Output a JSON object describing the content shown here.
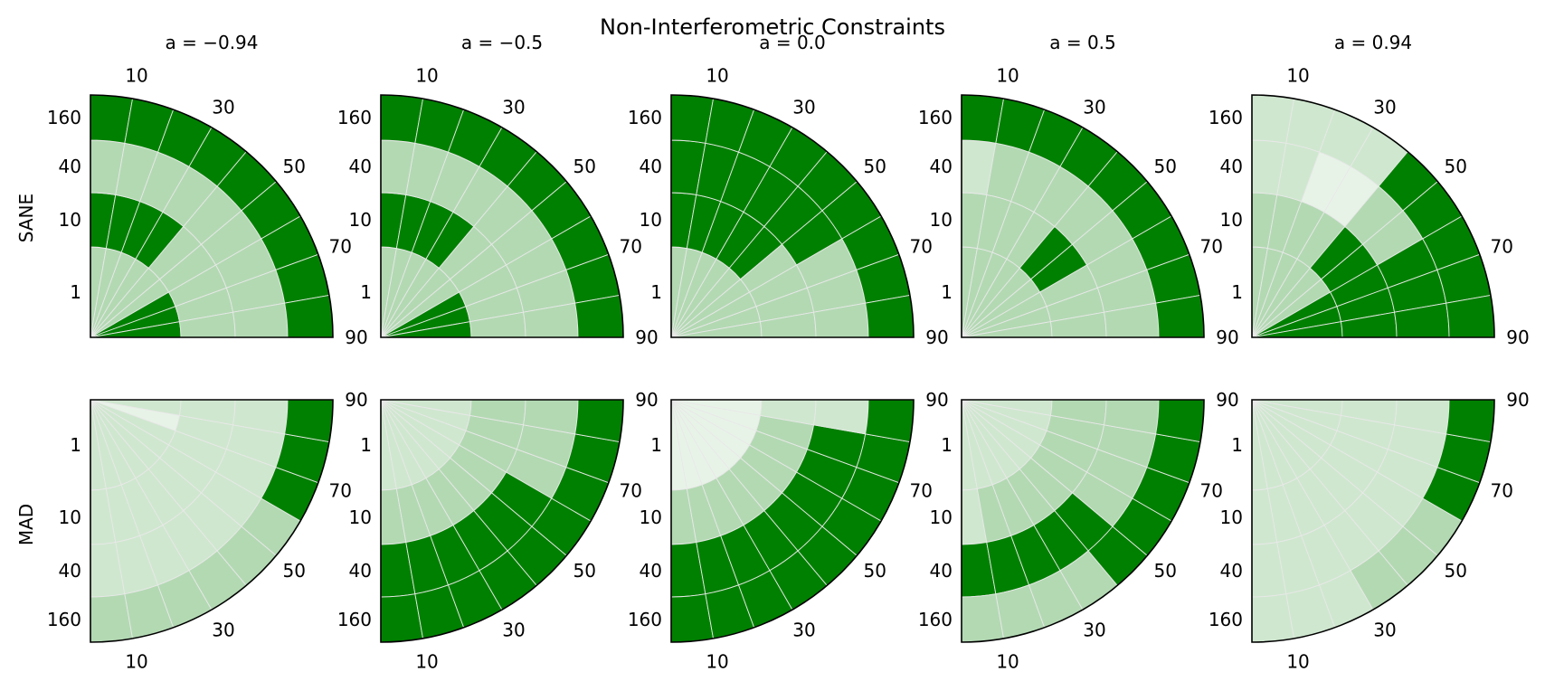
{
  "chart_data": {
    "type": "heatmap",
    "title": "Non-Interferometric Constraints",
    "column_titles": [
      "a = −0.94",
      "a = −0.5",
      "a = 0.0",
      "a = 0.5",
      "a = 0.94"
    ],
    "row_labels": [
      "SANE",
      "MAD"
    ],
    "radial_tick_labels": [
      "1",
      "10",
      "40",
      "160"
    ],
    "angular_tick_labels": [
      "10",
      "30",
      "50",
      "70",
      "90"
    ],
    "palette": [
      "#e8f3e8",
      "#cfe7cf",
      "#b3d9b3",
      "#008000"
    ],
    "panels": [
      {
        "row": "SANE",
        "spin": "a = −0.94",
        "grid": [
          [
            2,
            2,
            2,
            2,
            2,
            2,
            3,
            3,
            3
          ],
          [
            3,
            3,
            3,
            3,
            2,
            2,
            2,
            2,
            2
          ],
          [
            2,
            2,
            2,
            2,
            2,
            2,
            2,
            2,
            2
          ],
          [
            3,
            3,
            3,
            3,
            3,
            3,
            3,
            3,
            3
          ]
        ]
      },
      {
        "row": "SANE",
        "spin": "a = −0.5",
        "grid": [
          [
            2,
            2,
            2,
            2,
            2,
            2,
            3,
            3,
            3
          ],
          [
            3,
            3,
            3,
            3,
            2,
            2,
            2,
            2,
            2
          ],
          [
            2,
            2,
            2,
            2,
            2,
            2,
            2,
            2,
            2
          ],
          [
            3,
            3,
            3,
            3,
            3,
            3,
            3,
            3,
            3
          ]
        ]
      },
      {
        "row": "SANE",
        "spin": "a = 0.0",
        "grid": [
          [
            2,
            2,
            2,
            2,
            2,
            2,
            2,
            2,
            2
          ],
          [
            3,
            3,
            3,
            3,
            3,
            2,
            2,
            2,
            2
          ],
          [
            3,
            3,
            3,
            3,
            3,
            3,
            2,
            2,
            2
          ],
          [
            3,
            3,
            3,
            3,
            3,
            3,
            3,
            3,
            3
          ]
        ]
      },
      {
        "row": "SANE",
        "spin": "a = 0.5",
        "grid": [
          [
            2,
            2,
            2,
            2,
            2,
            2,
            2,
            2,
            2
          ],
          [
            2,
            2,
            2,
            2,
            3,
            3,
            2,
            2,
            2
          ],
          [
            1,
            2,
            2,
            2,
            2,
            2,
            2,
            2,
            2
          ],
          [
            3,
            3,
            3,
            3,
            3,
            3,
            3,
            3,
            3
          ]
        ]
      },
      {
        "row": "SANE",
        "spin": "a = 0.94",
        "grid": [
          [
            2,
            2,
            2,
            2,
            2,
            2,
            3,
            3,
            3
          ],
          [
            2,
            2,
            2,
            2,
            3,
            3,
            3,
            3,
            3
          ],
          [
            1,
            1,
            0,
            0,
            2,
            2,
            3,
            3,
            3
          ],
          [
            1,
            1,
            1,
            1,
            3,
            3,
            3,
            3,
            3
          ]
        ]
      },
      {
        "row": "MAD",
        "spin": "a = −0.94",
        "grid": [
          [
            1,
            1,
            1,
            1,
            1,
            1,
            1,
            0,
            1
          ],
          [
            1,
            1,
            1,
            1,
            1,
            1,
            1,
            1,
            1
          ],
          [
            1,
            1,
            1,
            1,
            1,
            1,
            1,
            1,
            1
          ],
          [
            2,
            2,
            2,
            2,
            2,
            2,
            3,
            3,
            3
          ]
        ]
      },
      {
        "row": "MAD",
        "spin": "a = −0.5",
        "grid": [
          [
            1,
            1,
            1,
            1,
            1,
            1,
            1,
            1,
            1
          ],
          [
            2,
            2,
            2,
            2,
            2,
            2,
            2,
            2,
            2
          ],
          [
            3,
            3,
            3,
            3,
            3,
            3,
            2,
            2,
            2
          ],
          [
            3,
            3,
            3,
            3,
            3,
            3,
            3,
            3,
            3
          ]
        ]
      },
      {
        "row": "MAD",
        "spin": "a = 0.0",
        "grid": [
          [
            0,
            0,
            0,
            0,
            0,
            0,
            0,
            0,
            0
          ],
          [
            2,
            2,
            2,
            2,
            2,
            2,
            2,
            2,
            1
          ],
          [
            3,
            3,
            3,
            3,
            3,
            3,
            3,
            3,
            1
          ],
          [
            3,
            3,
            3,
            3,
            3,
            3,
            3,
            3,
            3
          ]
        ]
      },
      {
        "row": "MAD",
        "spin": "a = 0.5",
        "grid": [
          [
            1,
            1,
            1,
            1,
            1,
            1,
            1,
            1,
            1
          ],
          [
            1,
            2,
            2,
            2,
            2,
            2,
            2,
            2,
            2
          ],
          [
            3,
            3,
            3,
            3,
            3,
            2,
            2,
            2,
            2
          ],
          [
            2,
            2,
            2,
            2,
            3,
            3,
            3,
            3,
            3
          ]
        ]
      },
      {
        "row": "MAD",
        "spin": "a = 0.94",
        "grid": [
          [
            1,
            1,
            1,
            1,
            1,
            1,
            1,
            1,
            1
          ],
          [
            1,
            1,
            1,
            1,
            1,
            1,
            1,
            1,
            1
          ],
          [
            1,
            1,
            1,
            1,
            1,
            1,
            1,
            1,
            1
          ],
          [
            1,
            1,
            1,
            2,
            2,
            2,
            3,
            3,
            3
          ]
        ]
      }
    ]
  }
}
